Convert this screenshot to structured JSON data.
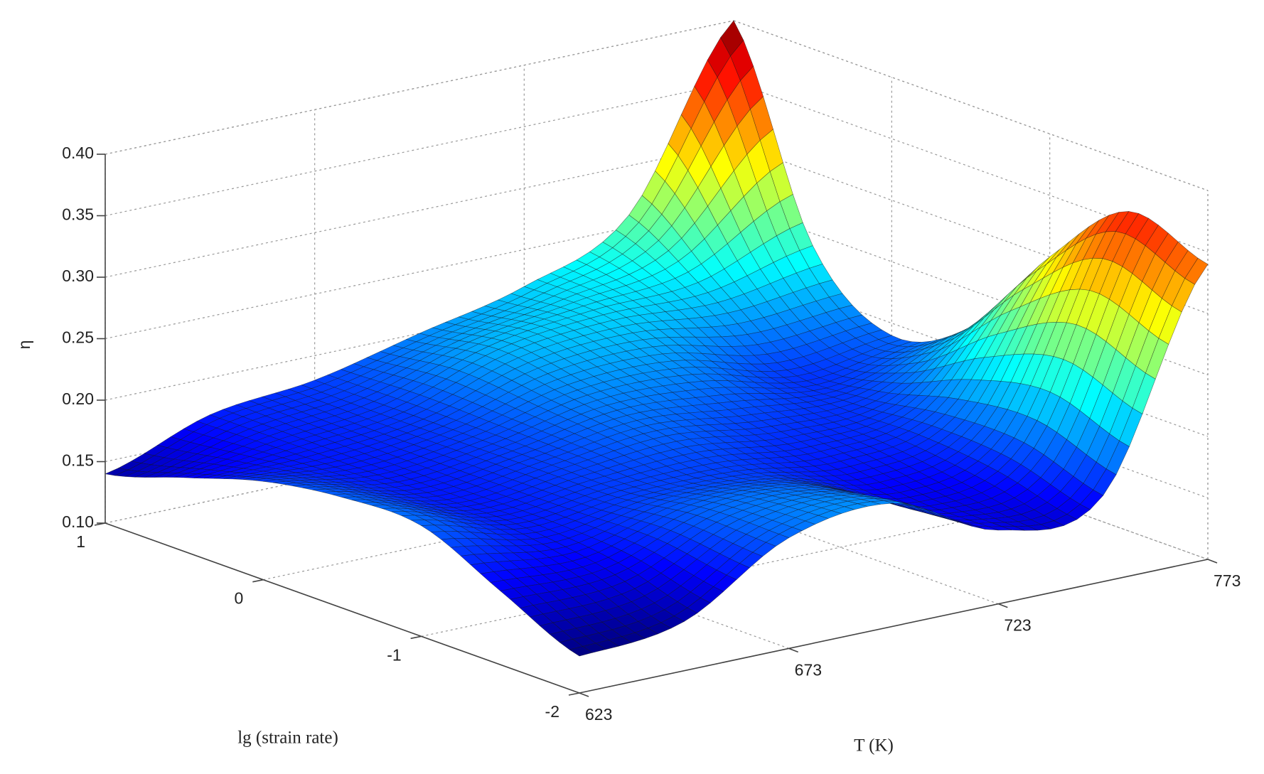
{
  "chart_data": {
    "type": "surface",
    "xlabel": "T (K)",
    "ylabel": "lg (strain rate)",
    "zlabel": "η",
    "x": [
      623,
      648,
      673,
      698,
      723,
      748,
      773
    ],
    "y": [
      -2,
      -1.5,
      -1,
      -0.5,
      0,
      0.5,
      1
    ],
    "z": [
      [
        0.13,
        0.14,
        0.19,
        0.2,
        0.16,
        0.17,
        0.34
      ],
      [
        0.16,
        0.16,
        0.19,
        0.19,
        0.16,
        0.19,
        0.36
      ],
      [
        0.19,
        0.17,
        0.18,
        0.18,
        0.17,
        0.19,
        0.3
      ],
      [
        0.19,
        0.17,
        0.18,
        0.19,
        0.18,
        0.18,
        0.22
      ],
      [
        0.18,
        0.17,
        0.18,
        0.2,
        0.2,
        0.18,
        0.19
      ],
      [
        0.16,
        0.17,
        0.18,
        0.21,
        0.22,
        0.22,
        0.24
      ],
      [
        0.14,
        0.17,
        0.18,
        0.2,
        0.22,
        0.26,
        0.4
      ]
    ],
    "xlim": [
      623,
      773
    ],
    "ylim": [
      -2,
      1
    ],
    "zlim": [
      0.1,
      0.4
    ],
    "xticks": [
      623,
      673,
      723,
      773
    ],
    "yticks": [
      -2,
      -1,
      0,
      1
    ],
    "zticks": [
      {
        "value": 0.1,
        "label": "0.10"
      },
      {
        "value": 0.15,
        "label": "0.15"
      },
      {
        "value": 0.2,
        "label": "0.20"
      },
      {
        "value": 0.25,
        "label": "0.25"
      },
      {
        "value": 0.3,
        "label": "0.30"
      },
      {
        "value": 0.35,
        "label": "0.35"
      },
      {
        "value": 0.4,
        "label": "0.40"
      }
    ],
    "grid": true,
    "colormap": "jet"
  }
}
